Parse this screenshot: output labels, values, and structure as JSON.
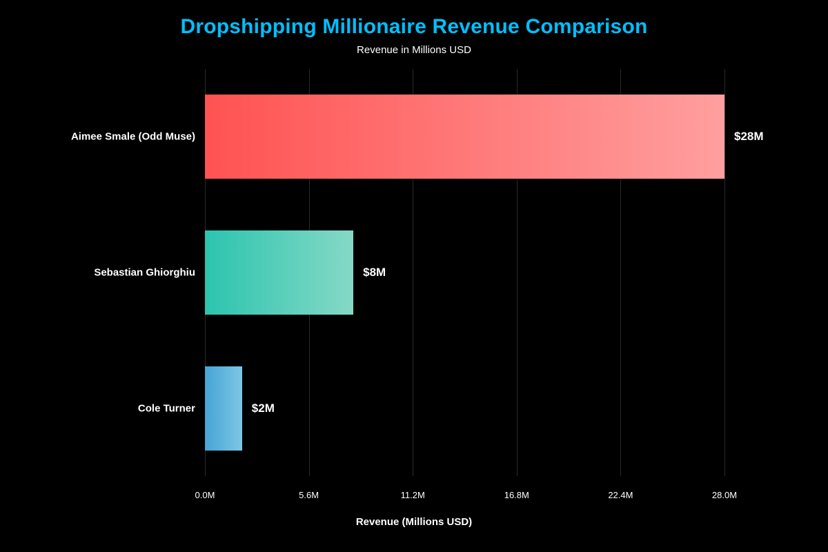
{
  "chart_data": {
    "type": "bar",
    "orientation": "horizontal",
    "title": "Dropshipping Millionaire Revenue Comparison",
    "subtitle": "Revenue in Millions USD",
    "xlabel": "Revenue (Millions USD)",
    "categories": [
      "Aimee Smale (Odd Muse)",
      "Sebastian Ghiorghiu",
      "Cole Turner"
    ],
    "values": [
      28,
      8,
      2
    ],
    "value_labels": [
      "$28M",
      "$8M",
      "$2M"
    ],
    "bar_gradients": [
      [
        "#ff5252",
        "#ff9f9f"
      ],
      [
        "#2bc4ae",
        "#85d9c6"
      ],
      [
        "#47a4d5",
        "#7cc6e6"
      ]
    ],
    "xlim": [
      0,
      28
    ],
    "xticks": [
      0,
      5.6,
      11.2,
      16.8,
      22.4,
      28
    ],
    "xtick_labels": [
      "0.0M",
      "5.6M",
      "11.2M",
      "16.8M",
      "22.4M",
      "28.0M"
    ],
    "grid": true,
    "legend": false,
    "colors": {
      "background": "#000000",
      "title": "#00bfff",
      "text": "#ffffff",
      "grid": "#2a2a2a"
    }
  }
}
